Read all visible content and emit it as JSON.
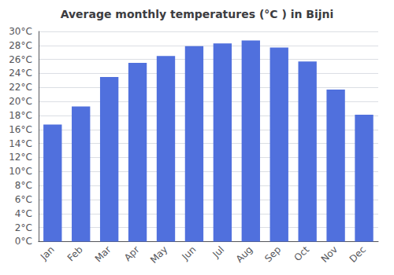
{
  "chart_data": {
    "type": "bar",
    "title": "Average monthly temperatures (°C ) in Bijni",
    "categories": [
      "Jan",
      "Feb",
      "Mar",
      "Apr",
      "May",
      "Jun",
      "Jul",
      "Aug",
      "Sep",
      "Oct",
      "Nov",
      "Dec"
    ],
    "values": [
      16.7,
      19.3,
      23.5,
      25.5,
      26.5,
      27.9,
      28.3,
      28.7,
      27.7,
      25.7,
      21.7,
      18.1
    ],
    "ylim": [
      0,
      30
    ],
    "yticks": [
      {
        "value": 0,
        "label": "0°C"
      },
      {
        "value": 2,
        "label": "2°C"
      },
      {
        "value": 4,
        "label": "4°C"
      },
      {
        "value": 6,
        "label": "6°C"
      },
      {
        "value": 8,
        "label": "8°C"
      },
      {
        "value": 10,
        "label": "10°C"
      },
      {
        "value": 12,
        "label": "12°C"
      },
      {
        "value": 14,
        "label": "14°C"
      },
      {
        "value": 16,
        "label": "16°C"
      },
      {
        "value": 18,
        "label": "18°C"
      },
      {
        "value": 20,
        "label": "20°C"
      },
      {
        "value": 22,
        "label": "22°C"
      },
      {
        "value": 24,
        "label": "24°C"
      },
      {
        "value": 26,
        "label": "26°C"
      },
      {
        "value": 28,
        "label": "28°C"
      },
      {
        "value": 30,
        "label": "30°C"
      }
    ],
    "grid": true
  }
}
